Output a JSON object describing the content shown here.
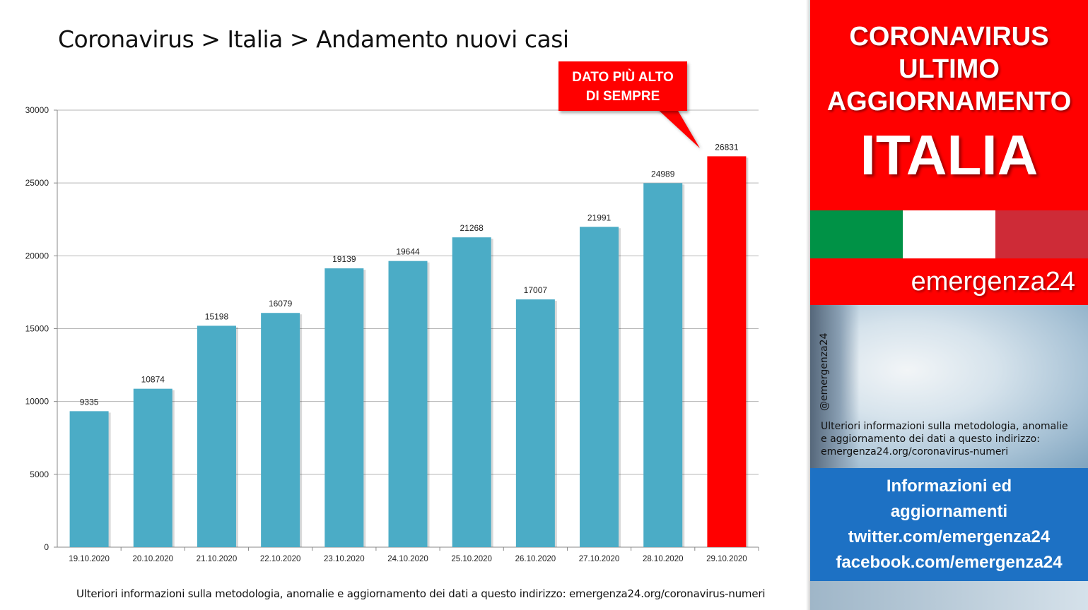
{
  "title": "Coronavirus > Italia > Andamento nuovi casi",
  "callout": {
    "line1": "DATO PIÙ ALTO",
    "line2": "DI SEMPRE"
  },
  "footnote": "Ulteriori informazioni sulla metodologia, anomalie e aggiornamento dei dati a questo indirizzo: emergenza24.org/coronavirus-numeri",
  "chart_data": {
    "type": "bar",
    "categories": [
      "19.10.2020",
      "20.10.2020",
      "21.10.2020",
      "22.10.2020",
      "23.10.2020",
      "24.10.2020",
      "25.10.2020",
      "26.10.2020",
      "27.10.2020",
      "28.10.2020",
      "29.10.2020"
    ],
    "values": [
      9335,
      10874,
      15198,
      16079,
      19139,
      19644,
      21268,
      17007,
      21991,
      24989,
      26831
    ],
    "ylim": [
      0,
      30000
    ],
    "yticks": [
      0,
      5000,
      10000,
      15000,
      20000,
      25000,
      30000
    ],
    "grid": true,
    "bar_color": "#4bacc6",
    "highlight_color": "#ff0000",
    "highlight_index": 10
  },
  "panel": {
    "headline1": "CORONAVIRUS",
    "headline2": "ULTIMO",
    "headline3": "AGGIORNAMENTO",
    "country": "ITALIA",
    "flag_colors": [
      "#009246",
      "#ffffff",
      "#ce2b37"
    ],
    "brand": "emergenza24",
    "handle": "@emergenza24",
    "note_line1": "Ulteriori informazioni sulla metodologia, anomalie",
    "note_line2": "e aggiornamento dei dati a questo indirizzo:",
    "note_line3": "emergenza24.org/coronavirus-numeri",
    "info_line1": "Informazioni ed",
    "info_line2": "aggiornamenti",
    "info_line3": "twitter.com/emergenza24",
    "info_line4": "facebook.com/emergenza24"
  }
}
